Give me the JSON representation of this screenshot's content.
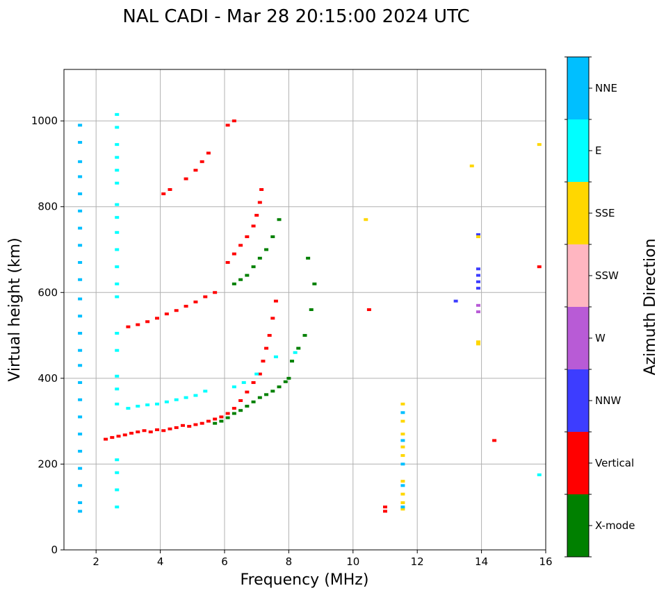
{
  "chart_data": {
    "type": "scatter",
    "title": "NAL CADI - Mar 28 20:15:00 2024 UTC",
    "xlabel": "Frequency (MHz)",
    "ylabel": "Virtual height (km)",
    "xlim": [
      1,
      16
    ],
    "ylim": [
      0,
      1120
    ],
    "xticks": [
      2,
      4,
      6,
      8,
      10,
      12,
      14,
      16
    ],
    "yticks": [
      0,
      200,
      400,
      600,
      800,
      1000
    ],
    "grid": true,
    "colorbar": {
      "label": "Azimuth Direction",
      "categories": [
        {
          "name": "X-mode",
          "color": "#008000"
        },
        {
          "name": "Vertical",
          "color": "#ff0000"
        },
        {
          "name": "NNW",
          "color": "#3d3dff"
        },
        {
          "name": "W",
          "color": "#b85bd6"
        },
        {
          "name": "SSW",
          "color": "#ffb6c1"
        },
        {
          "name": "SSE",
          "color": "#ffd700"
        },
        {
          "name": "E",
          "color": "#00ffff"
        },
        {
          "name": "NNE",
          "color": "#00bfff"
        }
      ]
    },
    "traces": [
      {
        "category": "Vertical",
        "points": [
          [
            2.3,
            258
          ],
          [
            2.5,
            262
          ],
          [
            2.7,
            265
          ],
          [
            2.9,
            268
          ],
          [
            3.1,
            272
          ],
          [
            3.3,
            275
          ],
          [
            3.5,
            278
          ],
          [
            3.7,
            275
          ],
          [
            3.9,
            280
          ],
          [
            4.1,
            278
          ],
          [
            4.3,
            282
          ],
          [
            4.5,
            285
          ],
          [
            4.7,
            290
          ],
          [
            4.9,
            288
          ],
          [
            5.1,
            292
          ],
          [
            5.3,
            295
          ],
          [
            5.5,
            300
          ],
          [
            5.7,
            305
          ],
          [
            5.9,
            310
          ],
          [
            6.1,
            318
          ],
          [
            6.3,
            330
          ],
          [
            6.5,
            348
          ],
          [
            6.7,
            368
          ],
          [
            6.9,
            390
          ],
          [
            7.1,
            410
          ],
          [
            7.2,
            440
          ],
          [
            7.3,
            470
          ],
          [
            7.4,
            500
          ],
          [
            7.5,
            540
          ],
          [
            7.6,
            580
          ]
        ]
      },
      {
        "category": "Vertical",
        "points": [
          [
            3.0,
            520
          ],
          [
            3.3,
            525
          ],
          [
            3.6,
            532
          ],
          [
            3.9,
            540
          ],
          [
            4.2,
            550
          ],
          [
            4.5,
            558
          ],
          [
            4.8,
            568
          ],
          [
            5.1,
            578
          ],
          [
            5.4,
            590
          ],
          [
            5.7,
            600
          ]
        ]
      },
      {
        "category": "Vertical",
        "points": [
          [
            6.1,
            670
          ],
          [
            6.3,
            690
          ],
          [
            6.5,
            710
          ],
          [
            6.7,
            730
          ],
          [
            6.9,
            755
          ],
          [
            7.0,
            780
          ],
          [
            7.1,
            810
          ],
          [
            7.15,
            840
          ]
        ]
      },
      {
        "category": "Vertical",
        "points": [
          [
            4.1,
            830
          ],
          [
            4.3,
            840
          ],
          [
            4.8,
            865
          ],
          [
            5.1,
            885
          ],
          [
            5.3,
            905
          ],
          [
            5.5,
            925
          ],
          [
            6.1,
            990
          ],
          [
            6.3,
            1000
          ]
        ]
      },
      {
        "category": "X-mode",
        "points": [
          [
            5.7,
            295
          ],
          [
            5.9,
            300
          ],
          [
            6.1,
            308
          ],
          [
            6.3,
            318
          ],
          [
            6.5,
            325
          ],
          [
            6.7,
            335
          ],
          [
            6.9,
            345
          ],
          [
            7.1,
            355
          ],
          [
            7.3,
            362
          ],
          [
            7.5,
            370
          ],
          [
            7.7,
            380
          ],
          [
            7.9,
            392
          ],
          [
            8.0,
            400
          ],
          [
            8.1,
            440
          ],
          [
            8.3,
            470
          ],
          [
            8.5,
            500
          ],
          [
            8.7,
            560
          ],
          [
            8.8,
            620
          ],
          [
            8.6,
            680
          ]
        ]
      },
      {
        "category": "X-mode",
        "points": [
          [
            6.3,
            620
          ],
          [
            6.5,
            630
          ],
          [
            6.7,
            640
          ],
          [
            6.9,
            660
          ],
          [
            7.1,
            680
          ],
          [
            7.3,
            700
          ],
          [
            7.5,
            730
          ],
          [
            7.7,
            770
          ]
        ]
      },
      {
        "category": "E",
        "points": [
          [
            3.0,
            330
          ],
          [
            3.3,
            335
          ],
          [
            3.6,
            338
          ],
          [
            3.9,
            340
          ],
          [
            4.2,
            345
          ],
          [
            4.5,
            350
          ],
          [
            4.8,
            355
          ],
          [
            5.1,
            360
          ],
          [
            5.4,
            370
          ],
          [
            6.3,
            380
          ],
          [
            6.6,
            390
          ],
          [
            7.0,
            410
          ],
          [
            7.6,
            450
          ],
          [
            8.2,
            460
          ]
        ]
      },
      {
        "category": "NNW",
        "points": [
          [
            13.9,
            735
          ],
          [
            13.9,
            655
          ],
          [
            13.9,
            640
          ],
          [
            13.9,
            625
          ],
          [
            13.9,
            610
          ]
        ]
      },
      {
        "category": "W",
        "points": [
          [
            13.9,
            570
          ],
          [
            13.9,
            555
          ]
        ]
      },
      {
        "category": "SSE",
        "points": [
          [
            13.9,
            485
          ],
          [
            13.9,
            480
          ],
          [
            13.9,
            730
          ]
        ]
      },
      {
        "category": "NNE",
        "points": [
          [
            1.5,
            990
          ],
          [
            1.5,
            950
          ],
          [
            1.5,
            905
          ],
          [
            1.5,
            870
          ],
          [
            1.5,
            830
          ],
          [
            1.5,
            790
          ],
          [
            1.5,
            750
          ],
          [
            1.5,
            710
          ],
          [
            1.5,
            670
          ],
          [
            1.5,
            630
          ],
          [
            1.5,
            585
          ],
          [
            1.5,
            545
          ],
          [
            1.5,
            505
          ],
          [
            1.5,
            465
          ],
          [
            1.5,
            430
          ],
          [
            1.5,
            390
          ],
          [
            1.5,
            350
          ],
          [
            1.5,
            310
          ],
          [
            1.5,
            270
          ],
          [
            1.5,
            230
          ],
          [
            1.5,
            190
          ],
          [
            1.5,
            150
          ],
          [
            1.5,
            110
          ],
          [
            1.5,
            90
          ]
        ]
      },
      {
        "category": "E",
        "points": [
          [
            2.65,
            1015
          ],
          [
            2.65,
            985
          ],
          [
            2.65,
            945
          ],
          [
            2.65,
            915
          ],
          [
            2.65,
            885
          ],
          [
            2.65,
            855
          ],
          [
            2.65,
            805
          ],
          [
            2.65,
            775
          ],
          [
            2.65,
            740
          ],
          [
            2.65,
            700
          ],
          [
            2.65,
            660
          ],
          [
            2.65,
            620
          ],
          [
            2.65,
            590
          ],
          [
            2.65,
            505
          ],
          [
            2.65,
            465
          ],
          [
            2.65,
            405
          ],
          [
            2.65,
            375
          ],
          [
            2.65,
            340
          ],
          [
            2.65,
            210
          ],
          [
            2.65,
            180
          ],
          [
            2.65,
            140
          ],
          [
            2.65,
            100
          ]
        ]
      },
      {
        "category": "SSE",
        "points": [
          [
            11.55,
            340
          ],
          [
            11.55,
            300
          ],
          [
            11.55,
            270
          ],
          [
            11.55,
            240
          ],
          [
            11.55,
            220
          ],
          [
            11.55,
            160
          ],
          [
            11.55,
            130
          ],
          [
            11.55,
            110
          ],
          [
            11.55,
            95
          ]
        ]
      },
      {
        "category": "NNE",
        "points": [
          [
            11.55,
            320
          ],
          [
            11.55,
            255
          ],
          [
            11.55,
            200
          ],
          [
            11.55,
            150
          ],
          [
            11.55,
            100
          ]
        ]
      },
      {
        "category": "Vertical",
        "points": [
          [
            10.5,
            560
          ],
          [
            11.0,
            100
          ],
          [
            11.0,
            90
          ],
          [
            14.4,
            255
          ],
          [
            15.8,
            660
          ]
        ]
      },
      {
        "category": "SSE",
        "points": [
          [
            10.4,
            770
          ],
          [
            13.7,
            895
          ],
          [
            15.8,
            945
          ]
        ]
      },
      {
        "category": "E",
        "points": [
          [
            15.8,
            175
          ]
        ]
      },
      {
        "category": "NNW",
        "points": [
          [
            13.2,
            580
          ]
        ]
      }
    ]
  }
}
